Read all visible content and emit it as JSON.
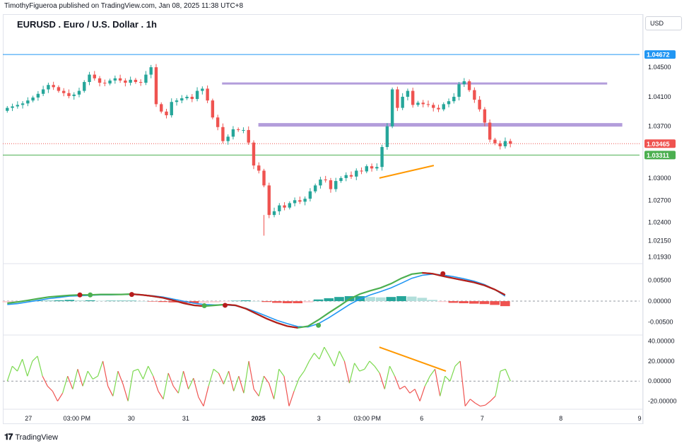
{
  "header": {
    "publisher_line": "TimothyFigueroa published on TradingView.com, Jan 08, 2025 11:38 UTC+8",
    "symbol_title": "EURUSD . Euro / U.S. Dollar . 1h",
    "currency_label": "USD"
  },
  "footer": {
    "brand": "TradingView"
  },
  "colors": {
    "up": "#26a69a",
    "down": "#ef5350",
    "level_purple": "#b39ddb",
    "blue_line": "#2196f3",
    "green_line": "#4caf50",
    "red_line": "#b71c1c",
    "orange": "#ff9800",
    "badge_blue": "#2196f3",
    "badge_red": "#ef5350",
    "badge_green": "#4caf50"
  },
  "chart_data": [
    {
      "type": "candlestick",
      "title": "EURUSD . Euro / U.S. Dollar . 1h",
      "price_axis_ticks": [
        "1.04500",
        "1.04100",
        "1.03700",
        "1.03000",
        "1.02700",
        "1.02400",
        "1.02150",
        "1.01930"
      ],
      "price_badges": [
        {
          "label": "1.04672",
          "value": 1.04672,
          "color": "#2196f3"
        },
        {
          "label": "1.03465",
          "value": 1.03465,
          "color": "#ef5350"
        },
        {
          "label": "1.03311",
          "value": 1.03311,
          "color": "#4caf50"
        }
      ],
      "horizontal_levels": [
        {
          "value": 1.04672,
          "color": "#2196f3",
          "x_range": [
            0,
            83
          ]
        },
        {
          "value": 1.0428,
          "color": "#b39ddb",
          "x_range": [
            36,
            100
          ],
          "width": 3
        },
        {
          "value": 1.0372,
          "color": "#b39ddb",
          "x_range": [
            42,
            100
          ],
          "width": 5
        },
        {
          "value": 1.03465,
          "color": "#ef5350",
          "x_range": [
            0,
            100
          ],
          "dotted": true
        },
        {
          "value": 1.03311,
          "color": "#4caf50",
          "x_range": [
            0,
            100
          ]
        }
      ],
      "trend_line": {
        "color": "#ff9800",
        "from": [
          62,
          1.03
        ],
        "to": [
          71,
          1.0317
        ]
      },
      "x_ticks": [
        "27",
        "03:00 PM",
        "30",
        "31",
        "2025",
        "3",
        "03:00 PM",
        "6",
        "7",
        "8",
        "9"
      ],
      "x_tick_positions": [
        4,
        12,
        21,
        30,
        42,
        52,
        60,
        69,
        79,
        92,
        105
      ],
      "x_range": [
        0,
        105
      ],
      "y_range": [
        1.0187,
        1.0497
      ],
      "close": [
        1.0395,
        1.0397,
        1.0399,
        1.0401,
        1.0405,
        1.0409,
        1.0414,
        1.042,
        1.0426,
        1.0423,
        1.0418,
        1.0415,
        1.0411,
        1.0413,
        1.0418,
        1.043,
        1.044,
        1.0435,
        1.0429,
        1.0428,
        1.0432,
        1.0435,
        1.0432,
        1.0429,
        1.0433,
        1.043,
        1.0429,
        1.044,
        1.045,
        1.04,
        1.039,
        1.0385,
        1.0403,
        1.0405,
        1.0408,
        1.041,
        1.0407,
        1.0418,
        1.0421,
        1.0405,
        1.0382,
        1.0369,
        1.035,
        1.0356,
        1.0366,
        1.0365,
        1.0365,
        1.0348,
        1.0317,
        1.031,
        1.029,
        1.025,
        1.0255,
        1.0263,
        1.026,
        1.0266,
        1.027,
        1.0268,
        1.0272,
        1.0282,
        1.029,
        1.0298,
        1.0297,
        1.0285,
        1.0296,
        1.03,
        1.0304,
        1.0302,
        1.031,
        1.0309,
        1.0316,
        1.0313,
        1.0315,
        1.0342,
        1.037,
        1.042,
        1.0395,
        1.041,
        1.0418,
        1.0399,
        1.0402,
        1.04,
        1.0399,
        1.0395,
        1.0393,
        1.04,
        1.0404,
        1.041,
        1.0427,
        1.0431,
        1.0419,
        1.0406,
        1.0393,
        1.0375,
        1.0352,
        1.0347,
        1.0343,
        1.035,
        1.03465
      ]
    },
    {
      "type": "line",
      "title": "",
      "y_ticks": [
        "0.00500",
        "0.00000",
        "-0.00500"
      ],
      "y_tick_values": [
        0.005,
        0,
        -0.005
      ],
      "y_range": [
        -0.0078,
        0.0085
      ],
      "x_range": [
        0,
        105
      ],
      "series": [
        {
          "color": "#4caf50",
          "values": [
            -0.0005,
            -0.0002,
            0.0002,
            0.0006,
            0.001,
            0.0012,
            0.0014,
            0.0015,
            0.0015,
            0.0016,
            0.0016,
            0.0016,
            0.0017,
            0.0015,
            0.0012,
            0.0008,
            0.0002,
            -0.0005,
            -0.001,
            -0.0012,
            -0.001,
            -0.0008,
            -0.001,
            -0.0018,
            -0.003,
            -0.0042,
            -0.0052,
            -0.006,
            -0.0064,
            -0.006,
            -0.0045,
            -0.0028,
            -0.0012,
            0.0005,
            0.0017,
            0.0025,
            0.0032,
            0.0042,
            0.0055,
            0.0065,
            0.0068,
            0.0066,
            0.006,
            0.0055,
            0.005,
            0.0045,
            0.0038,
            0.0028,
            0.0015
          ]
        },
        {
          "color": "#2196f3",
          "values": [
            -0.0008,
            -0.0006,
            -0.0002,
            0.0002,
            0.0006,
            0.0009,
            0.0012,
            0.0013,
            0.0014,
            0.0015,
            0.0015,
            0.0016,
            0.0016,
            0.0015,
            0.0013,
            0.001,
            0.0005,
            0.0,
            -0.0005,
            -0.0008,
            -0.0009,
            -0.0009,
            -0.0011,
            -0.0017,
            -0.0026,
            -0.0036,
            -0.0046,
            -0.0054,
            -0.0061,
            -0.0062,
            -0.0054,
            -0.004,
            -0.0024,
            -0.0008,
            0.0005,
            0.0015,
            0.0023,
            0.0032,
            0.0043,
            0.0055,
            0.0062,
            0.0065,
            0.0063,
            0.0059,
            0.0054,
            0.0048,
            0.004,
            0.0028,
            0.0012
          ]
        }
      ],
      "cross_markers": [
        {
          "x_index": 7,
          "value": 0.0015,
          "color": "#b71c1c"
        },
        {
          "x_index": 8,
          "value": 0.0015,
          "color": "#4caf50"
        },
        {
          "x_index": 12,
          "value": 0.0016,
          "color": "#b71c1c"
        },
        {
          "x_index": 19,
          "value": -0.0011,
          "color": "#4caf50"
        },
        {
          "x_index": 21,
          "value": -0.001,
          "color": "#b71c1c"
        },
        {
          "x_index": 30,
          "value": -0.0058,
          "color": "#4caf50"
        },
        {
          "x_index": 42,
          "value": 0.0066,
          "color": "#b71c1c"
        }
      ],
      "histogram": [
        -0.0003,
        -0.0002,
        -0.0001,
        0.0001,
        0.0001,
        0.0002,
        0.0003,
        0.0002,
        0.0002,
        0.0001,
        0.0001,
        0.0001,
        0.0001,
        0.0,
        -0.0001,
        -0.0002,
        -0.0003,
        -0.0004,
        -0.0005,
        -0.0004,
        -0.0003,
        -0.0001,
        0.0001,
        0.0002,
        0.0,
        -0.0002,
        -0.0004,
        -0.0005,
        -0.0005,
        -0.0003,
        0.0004,
        0.0007,
        0.001,
        0.0012,
        0.0012,
        0.001,
        0.0009,
        0.001,
        0.0012,
        0.0011,
        0.0008,
        0.0003,
        -0.0002,
        -0.0004,
        -0.0005,
        -0.0006,
        -0.0007,
        -0.0009,
        -0.0012
      ]
    },
    {
      "type": "line",
      "title": "",
      "y_ticks": [
        "40.00000",
        "20.00000",
        "0.00000",
        "-20.00000"
      ],
      "y_tick_values": [
        40,
        20,
        0,
        -20
      ],
      "y_range": [
        -26,
        44
      ],
      "x_range": [
        0,
        105
      ],
      "trend_line": {
        "color": "#ff9800",
        "from": [
          62,
          34
        ],
        "to": [
          73,
          10
        ]
      },
      "values": [
        0,
        15,
        10,
        22,
        5,
        20,
        25,
        5,
        -5,
        -10,
        -20,
        -12,
        5,
        -8,
        12,
        -5,
        10,
        2,
        5,
        20,
        -5,
        -15,
        10,
        -3,
        -20,
        10,
        12,
        2,
        15,
        5,
        -10,
        -18,
        8,
        -5,
        -12,
        10,
        -8,
        3,
        -16,
        -25,
        -5,
        12,
        8,
        -3,
        10,
        -10,
        5,
        -12,
        20,
        -8,
        -15,
        5,
        -2,
        -18,
        12,
        5,
        -25,
        -10,
        3,
        10,
        20,
        28,
        22,
        34,
        25,
        15,
        30,
        20,
        -2,
        18,
        10,
        12,
        20,
        15,
        8,
        -8,
        15,
        5,
        -8,
        -5,
        -12,
        -8,
        -20,
        -5,
        5,
        12,
        -15,
        5,
        0,
        15,
        20,
        -25,
        -18,
        -22,
        -25,
        -24,
        -20,
        -15,
        10,
        12,
        0
      ]
    }
  ]
}
